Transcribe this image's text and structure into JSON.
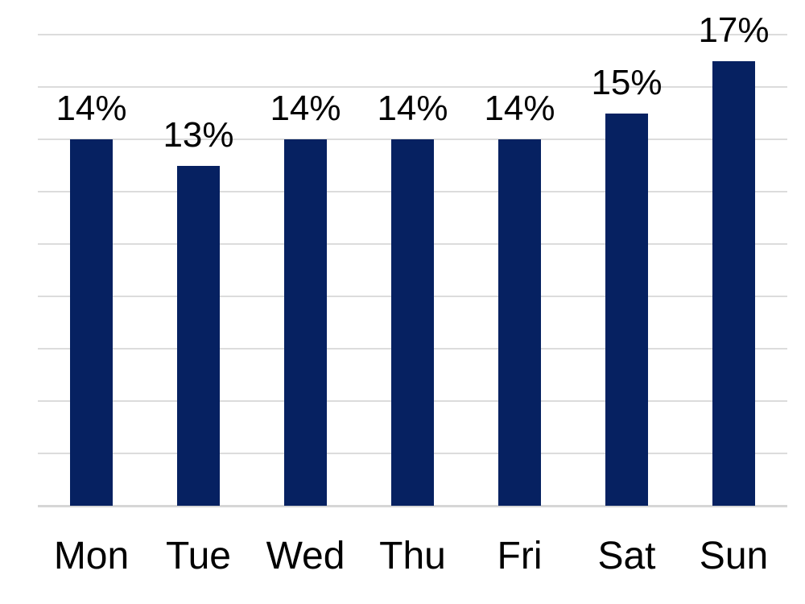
{
  "chart_data": {
    "type": "bar",
    "categories": [
      "Mon",
      "Tue",
      "Wed",
      "Thu",
      "Fri",
      "Sat",
      "Sun"
    ],
    "values": [
      14,
      13,
      14,
      14,
      14,
      15,
      17
    ],
    "data_labels": [
      "14%",
      "13%",
      "14%",
      "14%",
      "14%",
      "15%",
      "17%"
    ],
    "title": "",
    "xlabel": "",
    "ylabel": "",
    "ylim": [
      0,
      18
    ],
    "gridline_step": 2,
    "grid": true,
    "legend": false,
    "y_axis_labels_visible": false,
    "colors": {
      "bar": "#062161",
      "gridline": "#dcdcdc",
      "axis_line": "#d6d6d6",
      "text": "#000000",
      "background": "#ffffff"
    }
  }
}
